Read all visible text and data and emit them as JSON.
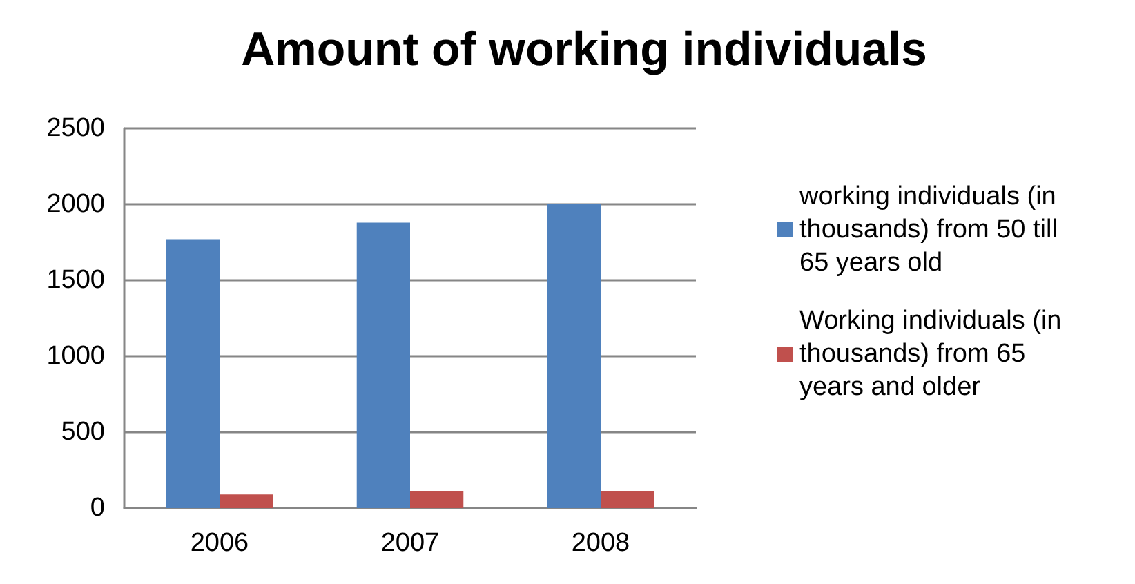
{
  "chart_data": {
    "type": "bar",
    "title": "Amount of working individuals",
    "categories": [
      "2006",
      "2007",
      "2008"
    ],
    "series": [
      {
        "name": "working individuals (in thousands) from 50 till 65 years old",
        "color": "#4f81bd",
        "values": [
          1770,
          1880,
          2000
        ]
      },
      {
        "name": "Working individuals (in thousands) from 65 years and older",
        "color": "#c0504d",
        "values": [
          90,
          110,
          110
        ]
      }
    ],
    "ylim": [
      0,
      2500
    ],
    "yticks": [
      0,
      500,
      1000,
      1500,
      2000,
      2500
    ],
    "grid": "y",
    "legend": "right"
  }
}
